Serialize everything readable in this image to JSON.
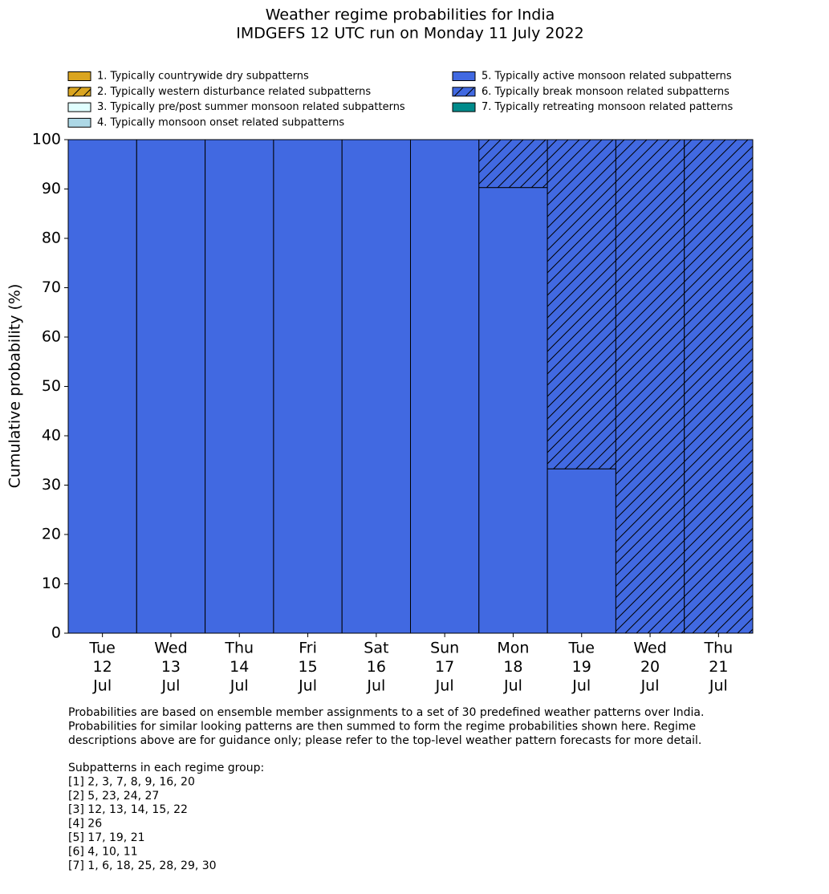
{
  "chart_data": {
    "type": "stacked-bar",
    "title": "Weather regime probabilities for India",
    "subtitle": "IMDGEFS 12 UTC run on Monday 11 July 2022",
    "ylabel": "Cumulative probability (%)",
    "categories": [
      [
        "Tue",
        "12",
        "Jul"
      ],
      [
        "Wed",
        "13",
        "Jul"
      ],
      [
        "Thu",
        "14",
        "Jul"
      ],
      [
        "Fri",
        "15",
        "Jul"
      ],
      [
        "Sat",
        "16",
        "Jul"
      ],
      [
        "Sun",
        "17",
        "Jul"
      ],
      [
        "Mon",
        "18",
        "Jul"
      ],
      [
        "Tue",
        "19",
        "Jul"
      ],
      [
        "Wed",
        "20",
        "Jul"
      ],
      [
        "Thu",
        "21",
        "Jul"
      ]
    ],
    "series": [
      {
        "name": "1. Typically countrywide dry subpatterns",
        "color": "#daa520",
        "hatch": false,
        "values": [
          0,
          0,
          0,
          0,
          0,
          0,
          0,
          0,
          0,
          0
        ]
      },
      {
        "name": "2. Typically western disturbance related subpatterns",
        "color": "#daa520",
        "hatch": true,
        "values": [
          0,
          0,
          0,
          0,
          0,
          0,
          0,
          0,
          0,
          0
        ]
      },
      {
        "name": "3. Typically pre/post summer monsoon related subpatterns",
        "color": "#e0ffff",
        "hatch": false,
        "values": [
          0,
          0,
          0,
          0,
          0,
          0,
          0,
          0,
          0,
          0
        ]
      },
      {
        "name": "4. Typically monsoon onset related subpatterns",
        "color": "#add8e6",
        "hatch": false,
        "values": [
          0,
          0,
          0,
          0,
          0,
          0,
          0,
          0,
          0,
          0
        ]
      },
      {
        "name": "5. Typically active monsoon related subpatterns",
        "color": "#4169e1",
        "hatch": false,
        "values": [
          100,
          100,
          100,
          100,
          100,
          100,
          90.3,
          33.3,
          0,
          0
        ]
      },
      {
        "name": "6. Typically break monsoon related subpatterns",
        "color": "#4169e1",
        "hatch": true,
        "values": [
          0,
          0,
          0,
          0,
          0,
          0,
          9.7,
          66.7,
          100,
          100
        ]
      },
      {
        "name": "7. Typically retreating monsoon related patterns",
        "color": "#008b8b",
        "hatch": false,
        "values": [
          0,
          0,
          0,
          0,
          0,
          0,
          0,
          0,
          0,
          0
        ]
      }
    ],
    "ylim": [
      0,
      100
    ],
    "yticks": [
      0,
      10,
      20,
      30,
      40,
      50,
      60,
      70,
      80,
      90,
      100
    ],
    "grid": false,
    "footnote": [
      "Probabilities are based on ensemble member assignments to a set of 30 predefined weather patterns over India.",
      "Probabilities for similar looking patterns are then summed to form the regime probabilities shown here. Regime",
      "descriptions above are for guidance only; please refer to the top-level weather pattern forecasts for more detail."
    ],
    "subpatterns_title": "Subpatterns in each regime group:",
    "subpatterns": [
      "[1] 2, 3, 7, 8, 9, 16, 20",
      "[2] 5, 23, 24, 27",
      "[3] 12, 13, 14, 15, 22",
      "[4] 26",
      "[5] 17, 19, 21",
      "[6] 4, 10, 11",
      "[7] 1, 6, 18, 25, 28, 29, 30"
    ]
  }
}
